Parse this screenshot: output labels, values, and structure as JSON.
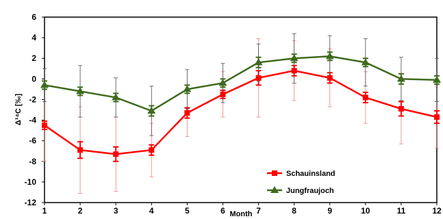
{
  "chart_data": {
    "type": "line",
    "xlabel": "Month",
    "ylabel": "Δ¹⁴C [‰]",
    "ylim": [
      -12,
      6
    ],
    "yticks": [
      "-12",
      "-10",
      "-8",
      "-6",
      "-4",
      "-2",
      "0",
      "2",
      "4",
      "6"
    ],
    "x": [
      1,
      2,
      3,
      4,
      5,
      6,
      7,
      8,
      9,
      10,
      11,
      12
    ],
    "xticks": [
      "1",
      "2",
      "3",
      "4",
      "5",
      "6",
      "7",
      "8",
      "9",
      "10",
      "11",
      "12"
    ],
    "legend_position": "lower-right",
    "grid": false,
    "series": [
      {
        "name": "Schauinsland",
        "color": "#ff0000",
        "marker": "square",
        "values": [
          -4.5,
          -6.9,
          -7.3,
          -6.9,
          -3.3,
          -1.5,
          0.1,
          0.8,
          0.1,
          -1.8,
          -2.9,
          -3.7
        ],
        "err_small": [
          0.4,
          0.8,
          0.7,
          0.5,
          0.5,
          0.4,
          0.7,
          0.5,
          0.5,
          0.5,
          0.7,
          0.6
        ],
        "err_large": [
          3.5,
          4.2,
          3.6,
          2.6,
          2.3,
          2.2,
          3.8,
          2.9,
          2.8,
          2.5,
          3.4,
          3.0
        ]
      },
      {
        "name": "Jungfraujoch",
        "color": "#3f6a1e",
        "marker": "triangle",
        "values": [
          -0.6,
          -1.2,
          -1.8,
          -3.1,
          -1.0,
          -0.4,
          1.6,
          2.0,
          2.2,
          1.6,
          0.0,
          -0.1
        ],
        "err_small": [
          0.4,
          0.4,
          0.4,
          0.5,
          0.4,
          0.4,
          0.5,
          0.4,
          0.4,
          0.4,
          0.5,
          0.4
        ],
        "err_large": [
          1.6,
          2.5,
          1.9,
          2.4,
          1.9,
          1.9,
          1.8,
          2.4,
          2.0,
          2.3,
          2.1,
          2.1
        ]
      }
    ]
  }
}
